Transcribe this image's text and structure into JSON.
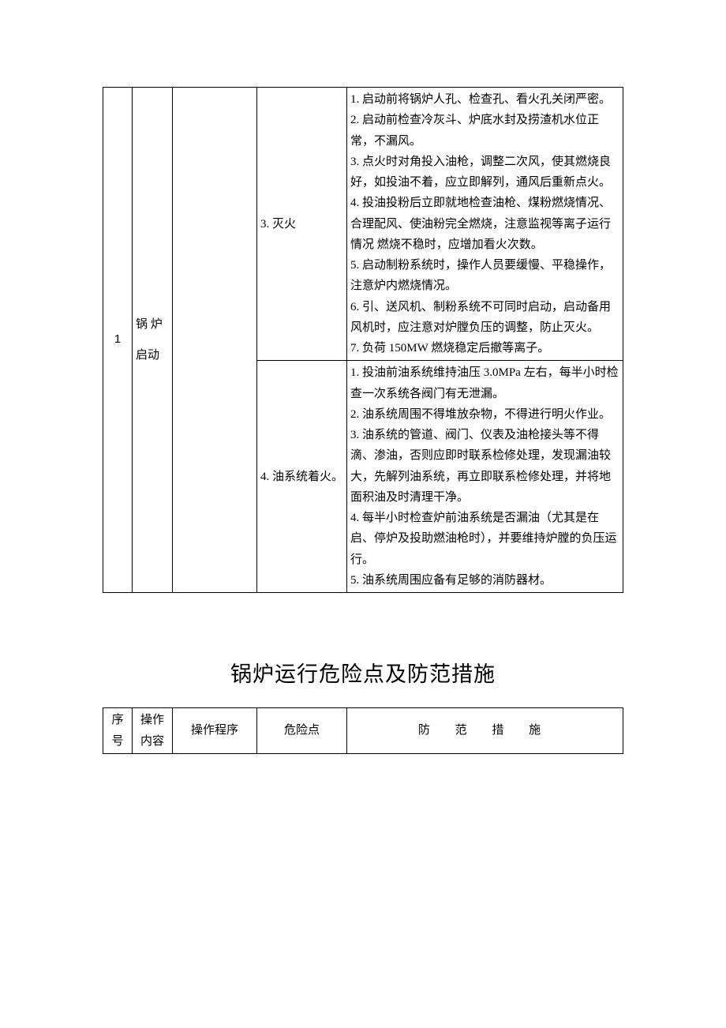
{
  "table1": {
    "row_num": "1",
    "op_content": "锅 炉启动",
    "hazards": [
      {
        "name": "3. 灭火",
        "measures": "1. 启动前将锅炉人孔、检查孔、看火孔关闭严密。\n2. 启动前检查冷灰斗、炉底水封及捞渣机水位正常，不漏风。\n3. 点火时对角投入油枪，调整二次风，使其燃烧良好，如投油不着，应立即解列，通风后重新点火。\n4. 投油投粉后立即就地检查油枪、煤粉燃烧情况、合理配风、使油粉完全燃烧，注意监视等离子运行情况 燃烧不稳时，应增加看火次数。\n5. 启动制粉系统时，操作人员要缓慢、平稳操作，注意炉内燃烧情况。\n6. 引、送风机、制粉系统不可同时启动，启动备用风机时，应注意对炉膛负压的调整，防止灭火。\n7. 负荷 150MW 燃烧稳定后撤等离子。"
      },
      {
        "name": "4. 油系统着火。",
        "measures": "1. 投油前油系统维持油压 3.0MPa 左右，每半小时检查一次系统各阀门有无泄漏。\n2. 油系统周围不得堆放杂物，不得进行明火作业。\n3. 油系统的管道、阀门、仪表及油枪接头等不得滴、渗油，否则应即时联系检修处理，发现漏油较大，先解列油系统，再立即联系检修处理，并将地面积油及时清理干净。\n4. 每半小时检查炉前油系统是否漏油（尤其是在启、停炉及投助燃油枪时），并要维持炉膛的负压运行。\n5. 油系统周围应备有足够的消防器材。"
      }
    ]
  },
  "section_title": "锅炉运行危险点及防范措施",
  "table2_headers": {
    "c0": "序号",
    "c1": "操作内容",
    "c2": "操作程序",
    "c3": "危险点",
    "c4": "防  范  措  施"
  },
  "style": {
    "font_family": "SimSun",
    "title_font_family": "SimHei",
    "body_font_size": 15,
    "title_font_size": 27,
    "border_color": "#000000",
    "background": "#ffffff",
    "text_color": "#000000"
  }
}
